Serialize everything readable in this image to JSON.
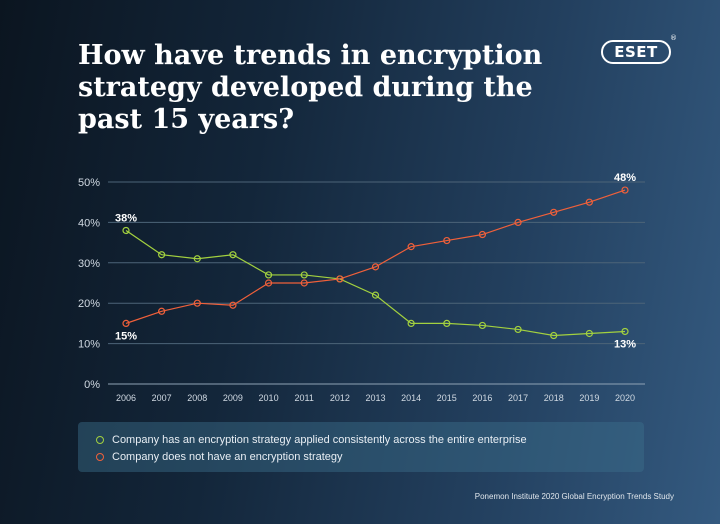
{
  "title": "How have trends in encryption strategy developed during the past 15 years?",
  "logo": {
    "text": "ESET",
    "mark": "®"
  },
  "source": "Ponemon Institute 2020 Global Encryption Trends Study",
  "colors": {
    "consistent": "#a3d13f",
    "none": "#f0603a"
  },
  "chart_data": {
    "type": "line",
    "x": [
      "2006",
      "2007",
      "2008",
      "2009",
      "2010",
      "2011",
      "2012",
      "2013",
      "2014",
      "2015",
      "2016",
      "2017",
      "2018",
      "2019",
      "2020"
    ],
    "yticks": [
      "0%",
      "10%",
      "20%",
      "30%",
      "40%",
      "50%"
    ],
    "ylim": [
      0,
      50
    ],
    "grid": true,
    "legend_position": "bottom",
    "series": [
      {
        "name": "Company has an encryption strategy applied consistently across the entire enterprise",
        "values": [
          38,
          32,
          31,
          32,
          27,
          27,
          26,
          22,
          15,
          15,
          14.5,
          13.5,
          12,
          12.5,
          13
        ],
        "color": "#a3d13f"
      },
      {
        "name": "Company does not have an encryption strategy",
        "values": [
          15,
          18,
          20,
          19.5,
          25,
          25,
          26,
          29,
          34,
          35.5,
          37,
          40,
          42.5,
          45,
          48
        ],
        "color": "#f0603a"
      }
    ],
    "annotations": [
      {
        "series": 0,
        "index": 0,
        "label": "38%",
        "placement": "above"
      },
      {
        "series": 1,
        "index": 0,
        "label": "15%",
        "placement": "below"
      },
      {
        "series": 1,
        "index": 14,
        "label": "48%",
        "placement": "above"
      },
      {
        "series": 0,
        "index": 14,
        "label": "13%",
        "placement": "below"
      }
    ]
  }
}
